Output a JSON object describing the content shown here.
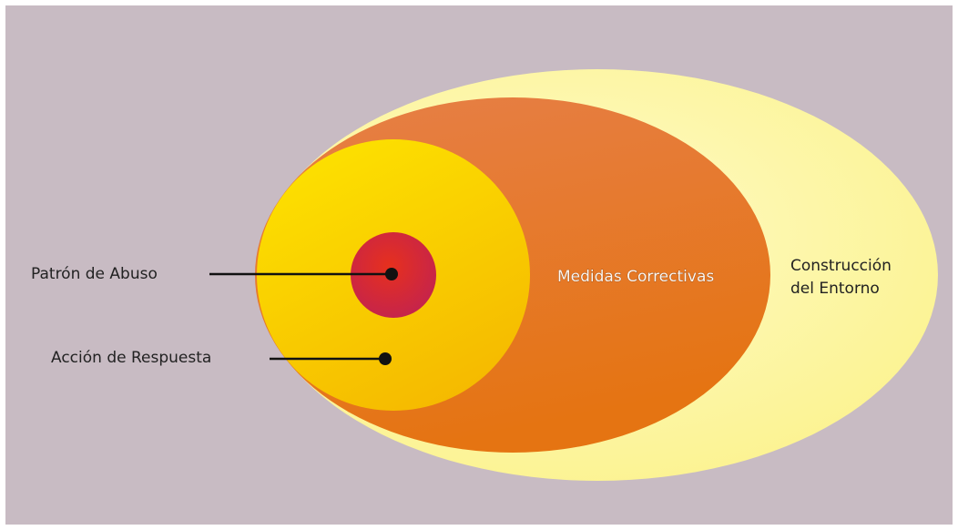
{
  "diagram": {
    "labels": {
      "abuse_pattern": "Patrón de Abuso",
      "response_action": "Acción de Respuesta",
      "corrective_measures": "Medidas Correctivas",
      "environment_line1": "Construcción",
      "environment_line2": "del Entorno"
    },
    "colors": {
      "background": "#c8bbc3",
      "outer_ellipse": "#fdf7a6",
      "middle_ellipse": "#e77b30",
      "inner_circle": "#f8c800",
      "core_circle": "#d8262a",
      "connector": "#111111"
    }
  }
}
